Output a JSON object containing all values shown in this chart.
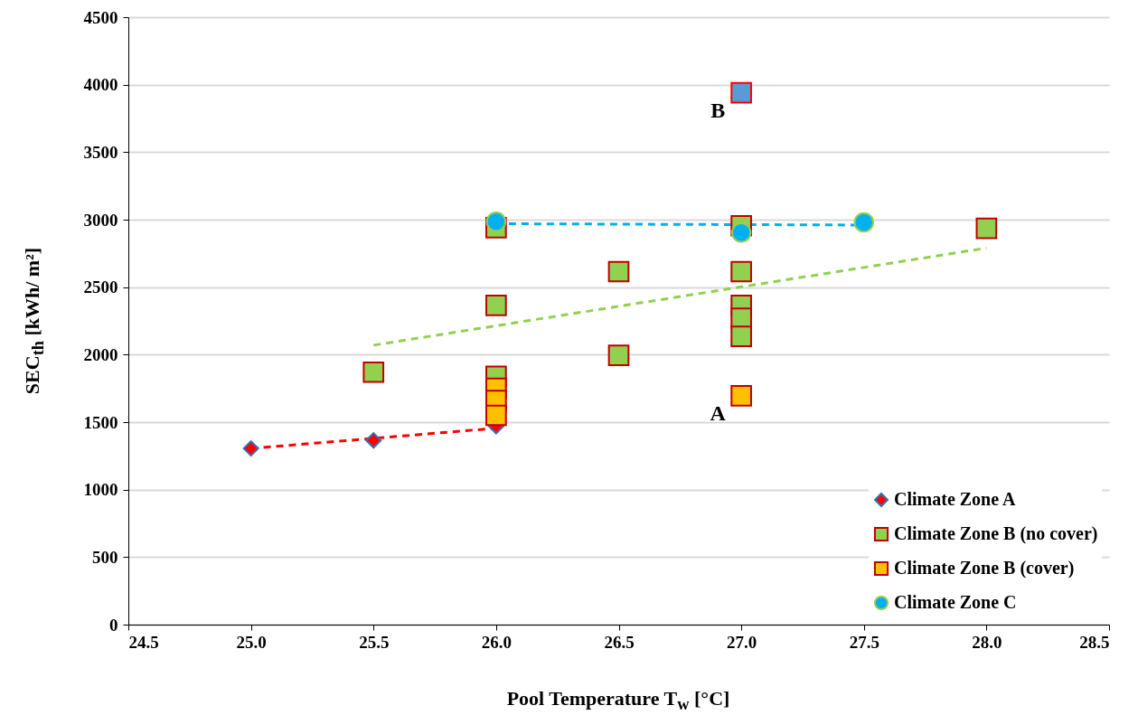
{
  "chart_data": {
    "type": "scatter",
    "xlabel": "Pool Temperature T$_{w}$ [°C]",
    "ylabel": "SEC$_{th}$ [kWh/ m²]",
    "xlim": [
      24.5,
      28.5
    ],
    "xticks": [
      {
        "value": 24.5,
        "label": "24.5"
      },
      {
        "value": 25,
        "label": "25.0"
      },
      {
        "value": 25.5,
        "label": "25.5"
      },
      {
        "value": 26,
        "label": "26.0"
      },
      {
        "value": 26.5,
        "label": "26.5"
      },
      {
        "value": 27,
        "label": "27.0"
      },
      {
        "value": 27.5,
        "label": "27.5"
      },
      {
        "value": 28,
        "label": "28.0"
      },
      {
        "value": 28.5,
        "label": "28.5"
      }
    ],
    "ylim": [
      0,
      4500
    ],
    "yticks": [
      0,
      500,
      1000,
      1500,
      2000,
      2500,
      3000,
      3500,
      4000,
      4500
    ],
    "grid": "y",
    "legend": "bottom right",
    "series": [
      {
        "name": "Climate Zone A",
        "marker": "diamond",
        "color": "#ff0000",
        "x": [
          25.0,
          25.5,
          26.0
        ],
        "values": [
          1305,
          1365,
          1470
        ]
      },
      {
        "name": "Climate Zone B (no cover)",
        "marker": "square",
        "color": "#92d050",
        "x": [
          25.5,
          26.0,
          26.0,
          26.0,
          26.5,
          26.5,
          27.0,
          27.0,
          27.0,
          27.0,
          27.0,
          28.0
        ],
        "values": [
          1870,
          2940,
          2365,
          1840,
          2615,
          1995,
          2955,
          2615,
          2365,
          2270,
          2135,
          2935
        ]
      },
      {
        "name": "Climate Zone B (cover)",
        "marker": "square",
        "color": "#ffc000",
        "x": [
          26.0,
          26.0,
          26.0,
          27.0
        ],
        "values": [
          1750,
          1660,
          1550,
          1695
        ]
      },
      {
        "name": "Climate Zone C",
        "marker": "circle",
        "color": "#00b0f0",
        "x": [
          26.0,
          27.0,
          27.5
        ],
        "values": [
          2985,
          2905,
          2980
        ]
      },
      {
        "marker": "square",
        "color": "#5b9bd5",
        "x": [
          27.0
        ],
        "values": [
          3940
        ]
      },
      {
        "type": "line",
        "line_style": "dashed",
        "color": "#ff0000",
        "x": [
          25.0,
          26.0
        ],
        "values": [
          1305,
          1455
        ]
      },
      {
        "type": "line",
        "line_style": "dashed",
        "color": "#92d050",
        "x": [
          25.5,
          28.0
        ],
        "values": [
          2070,
          2790
        ]
      },
      {
        "type": "line",
        "line_style": "dashed",
        "color": "#00b0f0",
        "x": [
          26.0,
          27.5
        ],
        "values": [
          2970,
          2960
        ]
      }
    ],
    "annotations": [
      {
        "text": "A",
        "x": 27.0,
        "y": 1695
      },
      {
        "text": "B",
        "x": 27.0,
        "y": 3940
      }
    ]
  }
}
